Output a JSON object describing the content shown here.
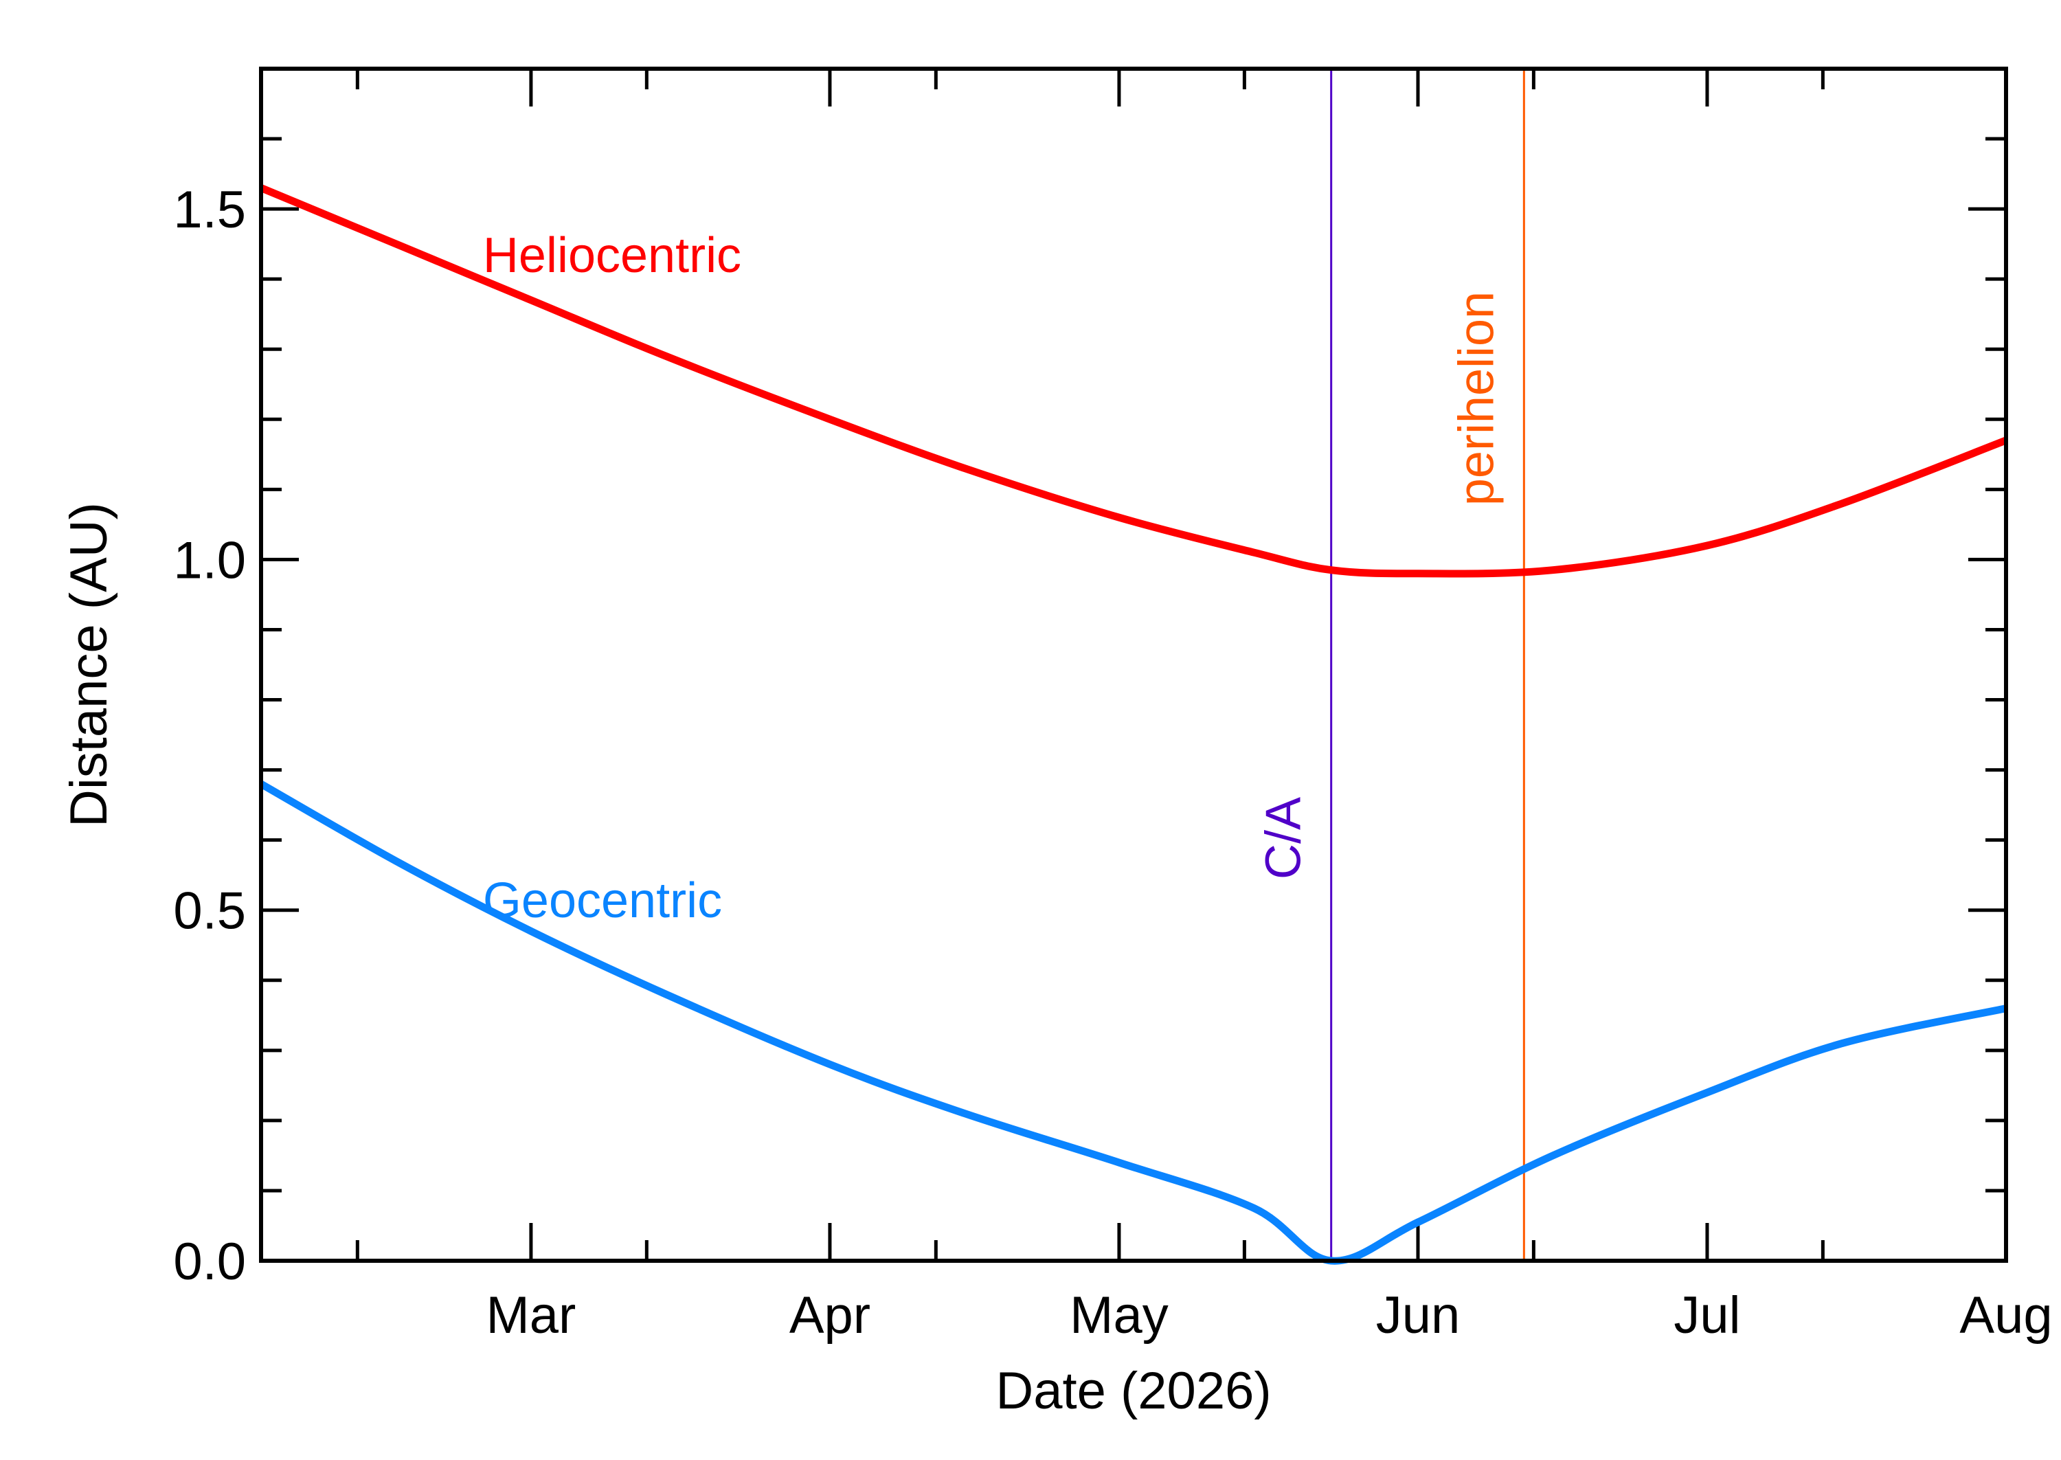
{
  "chart_data": {
    "type": "line",
    "xlabel": "Date (2026)",
    "ylabel": "Distance (AU)",
    "xlim": [
      "2026-02-01",
      "2026-08-01"
    ],
    "ylim": [
      0.0,
      1.7
    ],
    "x_ticks": [
      {
        "date": "2026-03-01",
        "label": "Mar"
      },
      {
        "date": "2026-04-01",
        "label": "Apr"
      },
      {
        "date": "2026-05-01",
        "label": "May"
      },
      {
        "date": "2026-06-01",
        "label": "Jun"
      },
      {
        "date": "2026-07-01",
        "label": "Jul"
      },
      {
        "date": "2026-08-01",
        "label": "Aug"
      }
    ],
    "x_minor_ticks": [
      "2026-02-11",
      "2026-03-13",
      "2026-04-12",
      "2026-05-14",
      "2026-06-13",
      "2026-07-13"
    ],
    "y_ticks": [
      {
        "value": 0.0,
        "label": "0.0"
      },
      {
        "value": 0.5,
        "label": "0.5"
      },
      {
        "value": 1.0,
        "label": "1.0"
      },
      {
        "value": 1.5,
        "label": "1.5"
      }
    ],
    "y_minor_step": 0.1,
    "grid": false,
    "series": [
      {
        "name": "Heliocentric",
        "color": "#ff0000",
        "x": [
          "2026-02-01",
          "2026-02-15",
          "2026-03-01",
          "2026-03-15",
          "2026-04-01",
          "2026-04-15",
          "2026-05-01",
          "2026-05-15",
          "2026-05-23",
          "2026-06-01",
          "2026-06-15",
          "2026-07-01",
          "2026-07-15",
          "2026-08-01"
        ],
        "y": [
          1.53,
          1.45,
          1.37,
          1.29,
          1.2,
          1.13,
          1.06,
          1.01,
          0.985,
          0.98,
          0.985,
          1.02,
          1.08,
          1.17
        ]
      },
      {
        "name": "Geocentric",
        "color": "#0a84ff",
        "x": [
          "2026-02-01",
          "2026-02-15",
          "2026-03-01",
          "2026-03-15",
          "2026-04-01",
          "2026-04-15",
          "2026-05-01",
          "2026-05-15",
          "2026-05-23",
          "2026-06-01",
          "2026-06-15",
          "2026-07-01",
          "2026-07-15",
          "2026-08-01"
        ],
        "y": [
          0.68,
          0.57,
          0.47,
          0.38,
          0.28,
          0.21,
          0.14,
          0.075,
          0.0,
          0.055,
          0.15,
          0.24,
          0.31,
          0.36
        ]
      }
    ],
    "markers": [
      {
        "label": "C/A",
        "date": "2026-05-23",
        "color": "#5000c8"
      },
      {
        "label": "perihelion",
        "date": "2026-06-12",
        "color": "#ff5a00"
      }
    ]
  }
}
